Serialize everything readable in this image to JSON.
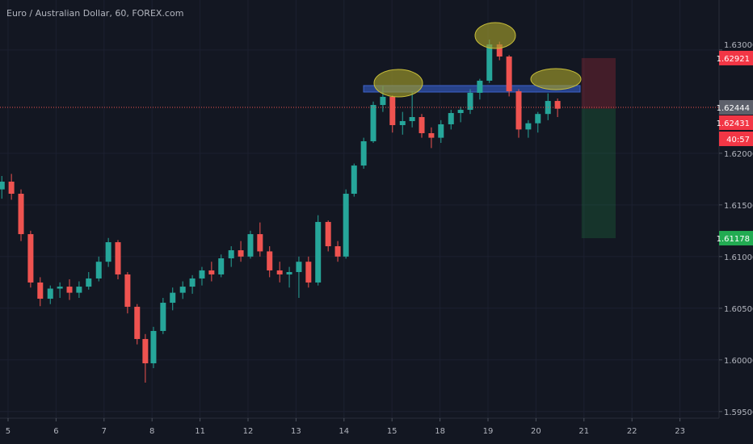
{
  "chart_data": {
    "type": "candlestick",
    "title": "Euro / Australian Dollar, 60, FOREX.com",
    "up_color": "#26a69a",
    "down_color": "#ef5350",
    "x": [
      -0.13,
      0.07,
      0.27,
      0.47,
      0.67,
      0.88,
      1.08,
      1.28,
      1.48,
      1.68,
      1.89,
      2.09,
      2.29,
      2.49,
      2.69,
      2.86,
      3.03,
      3.23,
      3.43,
      3.64,
      3.84,
      4.04,
      4.24,
      4.44,
      4.65,
      4.85,
      5.05,
      5.25,
      5.45,
      5.66,
      5.86,
      6.06,
      6.26,
      6.46,
      6.67,
      6.87,
      7.04,
      7.21,
      7.41,
      7.61,
      7.81,
      8.01,
      8.22,
      8.42,
      8.62,
      8.82,
      9.02,
      9.23,
      9.43,
      9.63,
      9.83,
      10.03,
      10.24,
      10.44,
      10.64,
      10.84,
      11.04,
      11.25,
      11.45
    ],
    "open": [
      1.6165,
      1.61725,
      1.61608,
      1.61217,
      1.60749,
      1.60592,
      1.6069,
      1.60709,
      1.6065,
      1.60709,
      1.60788,
      1.6095,
      1.61139,
      1.60827,
      1.60514,
      1.60202,
      1.59967,
      1.6028,
      1.60553,
      1.6065,
      1.60709,
      1.60788,
      1.60866,
      1.60827,
      1.60983,
      1.61061,
      1.61,
      1.61217,
      1.6105,
      1.60866,
      1.60827,
      1.6085,
      1.6095,
      1.60749,
      1.61335,
      1.611,
      1.61,
      1.61608,
      1.61881,
      1.62116,
      1.62467,
      1.62546,
      1.62272,
      1.62311,
      1.6235,
      1.62194,
      1.6215,
      1.6228,
      1.62389,
      1.6242,
      1.62585,
      1.62702,
      1.63053,
      1.62936,
      1.626,
      1.6223,
      1.6229,
      1.6238,
      1.62506
    ],
    "high": [
      1.6178,
      1.618,
      1.6165,
      1.6125,
      1.608,
      1.6072,
      1.6075,
      1.6078,
      1.6076,
      1.6085,
      1.61,
      1.6118,
      1.6116,
      1.6085,
      1.6054,
      1.6025,
      1.6032,
      1.606,
      1.607,
      1.6076,
      1.6082,
      1.609,
      1.6095,
      1.6102,
      1.611,
      1.6115,
      1.6125,
      1.6133,
      1.611,
      1.6095,
      1.609,
      1.61,
      1.61,
      1.614,
      1.6135,
      1.6115,
      1.6165,
      1.619,
      1.6215,
      1.625,
      1.6265,
      1.6256,
      1.624,
      1.626,
      1.6238,
      1.6225,
      1.6232,
      1.6242,
      1.6245,
      1.6262,
      1.6272,
      1.631,
      1.6308,
      1.6295,
      1.6262,
      1.6232,
      1.624,
      1.6258,
      1.6253
    ],
    "low": [
      1.6156,
      1.6155,
      1.6115,
      1.607,
      1.6052,
      1.6054,
      1.606,
      1.6058,
      1.606,
      1.6068,
      1.6076,
      1.609,
      1.6078,
      1.6045,
      1.6015,
      1.5978,
      1.5992,
      1.6025,
      1.6048,
      1.6059,
      1.6064,
      1.6072,
      1.6076,
      1.608,
      1.609,
      1.6095,
      1.6098,
      1.61,
      1.608,
      1.6075,
      1.607,
      1.606,
      1.607,
      1.6072,
      1.6105,
      1.6095,
      1.6098,
      1.6158,
      1.6185,
      1.621,
      1.624,
      1.622,
      1.6218,
      1.6225,
      1.6215,
      1.6205,
      1.621,
      1.6223,
      1.623,
      1.6238,
      1.6252,
      1.6268,
      1.629,
      1.6255,
      1.6215,
      1.6215,
      1.622,
      1.6232,
      1.6235
    ],
    "close": [
      1.61725,
      1.61608,
      1.61217,
      1.60749,
      1.60592,
      1.6069,
      1.60709,
      1.6065,
      1.60709,
      1.60788,
      1.6095,
      1.61139,
      1.60827,
      1.60514,
      1.60202,
      1.59967,
      1.6028,
      1.60553,
      1.6065,
      1.60709,
      1.60788,
      1.60866,
      1.60827,
      1.60983,
      1.61061,
      1.61,
      1.61217,
      1.6105,
      1.60866,
      1.60827,
      1.6085,
      1.6095,
      1.60749,
      1.61335,
      1.611,
      1.61,
      1.61608,
      1.61881,
      1.62116,
      1.62467,
      1.62546,
      1.62272,
      1.62311,
      1.6235,
      1.62194,
      1.6215,
      1.6228,
      1.62389,
      1.6242,
      1.62585,
      1.62702,
      1.63053,
      1.62936,
      1.626,
      1.6223,
      1.6229,
      1.6238,
      1.62506,
      1.62431
    ],
    "xlim": [
      -0.168,
      14.815
    ],
    "xticks": [
      {
        "value": 0,
        "label": "5"
      },
      {
        "value": 1,
        "label": "6"
      },
      {
        "value": 2,
        "label": "7"
      },
      {
        "value": 3,
        "label": "8"
      },
      {
        "value": 4,
        "label": "11"
      },
      {
        "value": 5,
        "label": "12"
      },
      {
        "value": 6,
        "label": "13"
      },
      {
        "value": 7,
        "label": "14"
      },
      {
        "value": 8,
        "label": "15"
      },
      {
        "value": 9,
        "label": "18"
      },
      {
        "value": 10,
        "label": "19"
      },
      {
        "value": 11,
        "label": "20"
      },
      {
        "value": 12,
        "label": "21"
      },
      {
        "value": 13,
        "label": "22"
      },
      {
        "value": 14,
        "label": "23"
      }
    ],
    "ylim": [
      1.59436,
      1.63483
    ],
    "yticks": [
      {
        "value": 1.595,
        "label": "1.59500"
      },
      {
        "value": 1.6,
        "label": "1.60000"
      },
      {
        "value": 1.605,
        "label": "1.60500"
      },
      {
        "value": 1.61,
        "label": "1.61000"
      },
      {
        "value": 1.615,
        "label": "1.61500"
      },
      {
        "value": 1.62,
        "label": "1.62000"
      },
      {
        "value": 1.63,
        "label": "1.63000"
      }
    ],
    "grid": true,
    "last_price": 1.62444,
    "last_price_color": "#5d606b",
    "position": {
      "entry": 1.62431,
      "stop": 1.62921,
      "target": 1.61178,
      "x": [
        11.95,
        12.66
      ],
      "stop_color": "#f23645",
      "target_color": "#22ab52",
      "countdown": "40:57"
    }
  }
}
